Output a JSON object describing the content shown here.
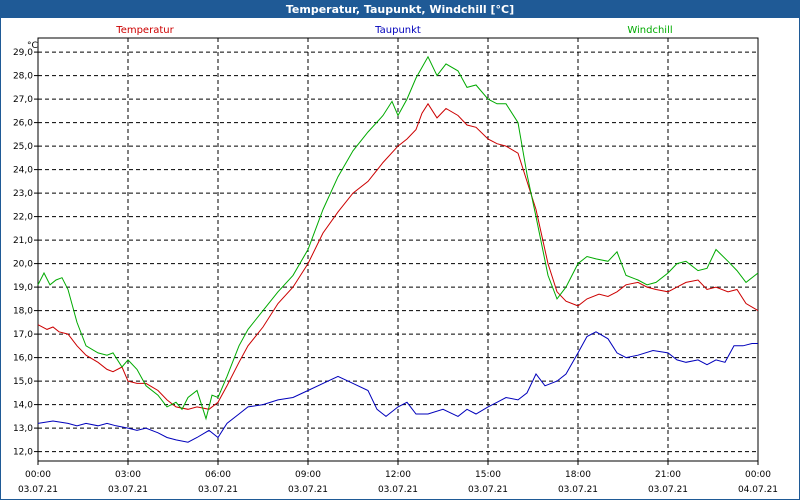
{
  "window": {
    "title": "Temperatur, Taupunkt, Windchill [°C]"
  },
  "chart_data": {
    "type": "line",
    "title": "Temperatur, Taupunkt, Windchill [°C]",
    "ylabel": "°C",
    "xlabel": "",
    "ylim": [
      11.6,
      29.6
    ],
    "xlim": [
      0,
      24
    ],
    "grid": true,
    "yticks": [
      "12,0",
      "13,0",
      "14,0",
      "15,0",
      "16,0",
      "17,0",
      "18,0",
      "19,0",
      "20,0",
      "21,0",
      "22,0",
      "23,0",
      "24,0",
      "25,0",
      "26,0",
      "27,0",
      "28,0",
      "29,0"
    ],
    "ytick_values": [
      12,
      13,
      14,
      15,
      16,
      17,
      18,
      19,
      20,
      21,
      22,
      23,
      24,
      25,
      26,
      27,
      28,
      29
    ],
    "xticks": [
      {
        "x": 0,
        "time": "00:00",
        "date": "03.07.21"
      },
      {
        "x": 3,
        "time": "03:00",
        "date": "03.07.21"
      },
      {
        "x": 6,
        "time": "06:00",
        "date": "03.07.21"
      },
      {
        "x": 9,
        "time": "09:00",
        "date": "03.07.21"
      },
      {
        "x": 12,
        "time": "12:00",
        "date": "03.07.21"
      },
      {
        "x": 15,
        "time": "15:00",
        "date": "03.07.21"
      },
      {
        "x": 18,
        "time": "18:00",
        "date": "03.07.21"
      },
      {
        "x": 21,
        "time": "21:00",
        "date": "03.07.21"
      },
      {
        "x": 24,
        "time": "00:00",
        "date": "04.07.21"
      }
    ],
    "series": [
      {
        "name": "Temperatur",
        "color": "#cc0000",
        "points": [
          [
            0,
            17.4
          ],
          [
            0.3,
            17.2
          ],
          [
            0.5,
            17.3
          ],
          [
            0.7,
            17.1
          ],
          [
            1.0,
            17.0
          ],
          [
            1.3,
            16.5
          ],
          [
            1.6,
            16.1
          ],
          [
            2.0,
            15.8
          ],
          [
            2.3,
            15.5
          ],
          [
            2.5,
            15.4
          ],
          [
            2.8,
            15.6
          ],
          [
            3.0,
            15.0
          ],
          [
            3.3,
            14.9
          ],
          [
            3.6,
            14.9
          ],
          [
            4.0,
            14.6
          ],
          [
            4.3,
            14.2
          ],
          [
            4.6,
            13.9
          ],
          [
            5.0,
            13.8
          ],
          [
            5.3,
            13.9
          ],
          [
            5.7,
            13.8
          ],
          [
            6.0,
            14.1
          ],
          [
            6.3,
            14.8
          ],
          [
            6.7,
            15.8
          ],
          [
            7.0,
            16.5
          ],
          [
            7.5,
            17.3
          ],
          [
            8.0,
            18.3
          ],
          [
            8.5,
            19.0
          ],
          [
            9.0,
            20.0
          ],
          [
            9.5,
            21.3
          ],
          [
            10.0,
            22.2
          ],
          [
            10.5,
            23.0
          ],
          [
            11.0,
            23.5
          ],
          [
            11.5,
            24.3
          ],
          [
            12.0,
            25.0
          ],
          [
            12.3,
            25.3
          ],
          [
            12.6,
            25.7
          ],
          [
            12.8,
            26.4
          ],
          [
            13.0,
            26.8
          ],
          [
            13.3,
            26.2
          ],
          [
            13.6,
            26.6
          ],
          [
            14.0,
            26.3
          ],
          [
            14.3,
            25.9
          ],
          [
            14.6,
            25.8
          ],
          [
            15.0,
            25.3
          ],
          [
            15.3,
            25.1
          ],
          [
            15.6,
            25.0
          ],
          [
            16.0,
            24.7
          ],
          [
            16.3,
            23.5
          ],
          [
            16.6,
            22.3
          ],
          [
            17.0,
            20.0
          ],
          [
            17.3,
            18.8
          ],
          [
            17.6,
            18.4
          ],
          [
            18.0,
            18.2
          ],
          [
            18.3,
            18.5
          ],
          [
            18.7,
            18.7
          ],
          [
            19.0,
            18.6
          ],
          [
            19.3,
            18.8
          ],
          [
            19.6,
            19.1
          ],
          [
            20.0,
            19.2
          ],
          [
            20.3,
            19.0
          ],
          [
            20.6,
            18.9
          ],
          [
            21.0,
            18.8
          ],
          [
            21.3,
            19.0
          ],
          [
            21.6,
            19.2
          ],
          [
            22.0,
            19.3
          ],
          [
            22.3,
            18.9
          ],
          [
            22.6,
            19.0
          ],
          [
            23.0,
            18.8
          ],
          [
            23.3,
            18.9
          ],
          [
            23.6,
            18.3
          ],
          [
            24.0,
            18.0
          ]
        ]
      },
      {
        "name": "Taupunkt",
        "color": "#0000bb",
        "points": [
          [
            0,
            13.2
          ],
          [
            0.5,
            13.3
          ],
          [
            1.0,
            13.2
          ],
          [
            1.3,
            13.1
          ],
          [
            1.6,
            13.2
          ],
          [
            2.0,
            13.1
          ],
          [
            2.3,
            13.2
          ],
          [
            2.6,
            13.1
          ],
          [
            3.0,
            13.0
          ],
          [
            3.3,
            12.9
          ],
          [
            3.6,
            13.0
          ],
          [
            4.0,
            12.8
          ],
          [
            4.3,
            12.6
          ],
          [
            4.6,
            12.5
          ],
          [
            5.0,
            12.4
          ],
          [
            5.3,
            12.6
          ],
          [
            5.7,
            12.9
          ],
          [
            6.0,
            12.6
          ],
          [
            6.3,
            13.2
          ],
          [
            6.7,
            13.6
          ],
          [
            7.0,
            13.9
          ],
          [
            7.5,
            14.0
          ],
          [
            8.0,
            14.2
          ],
          [
            8.5,
            14.3
          ],
          [
            9.0,
            14.6
          ],
          [
            9.5,
            14.9
          ],
          [
            10.0,
            15.2
          ],
          [
            10.5,
            14.9
          ],
          [
            11.0,
            14.6
          ],
          [
            11.3,
            13.8
          ],
          [
            11.6,
            13.5
          ],
          [
            12.0,
            13.9
          ],
          [
            12.3,
            14.1
          ],
          [
            12.6,
            13.6
          ],
          [
            13.0,
            13.6
          ],
          [
            13.5,
            13.8
          ],
          [
            14.0,
            13.5
          ],
          [
            14.3,
            13.8
          ],
          [
            14.6,
            13.6
          ],
          [
            15.0,
            13.9
          ],
          [
            15.3,
            14.1
          ],
          [
            15.6,
            14.3
          ],
          [
            16.0,
            14.2
          ],
          [
            16.3,
            14.5
          ],
          [
            16.6,
            15.3
          ],
          [
            16.9,
            14.8
          ],
          [
            17.3,
            15.0
          ],
          [
            17.6,
            15.3
          ],
          [
            18.0,
            16.2
          ],
          [
            18.3,
            16.9
          ],
          [
            18.6,
            17.1
          ],
          [
            19.0,
            16.8
          ],
          [
            19.3,
            16.2
          ],
          [
            19.6,
            16.0
          ],
          [
            20.0,
            16.1
          ],
          [
            20.5,
            16.3
          ],
          [
            21.0,
            16.2
          ],
          [
            21.3,
            15.9
          ],
          [
            21.6,
            15.8
          ],
          [
            22.0,
            15.9
          ],
          [
            22.3,
            15.7
          ],
          [
            22.6,
            15.9
          ],
          [
            22.9,
            15.8
          ],
          [
            23.2,
            16.5
          ],
          [
            23.5,
            16.5
          ],
          [
            23.8,
            16.6
          ],
          [
            24.0,
            16.6
          ]
        ]
      },
      {
        "name": "Windchill",
        "color": "#00aa00",
        "points": [
          [
            0,
            19.1
          ],
          [
            0.2,
            19.6
          ],
          [
            0.4,
            19.1
          ],
          [
            0.6,
            19.3
          ],
          [
            0.8,
            19.4
          ],
          [
            1.0,
            18.9
          ],
          [
            1.3,
            17.5
          ],
          [
            1.6,
            16.5
          ],
          [
            2.0,
            16.2
          ],
          [
            2.3,
            16.1
          ],
          [
            2.5,
            16.2
          ],
          [
            2.8,
            15.6
          ],
          [
            3.0,
            15.9
          ],
          [
            3.3,
            15.5
          ],
          [
            3.6,
            14.8
          ],
          [
            4.0,
            14.4
          ],
          [
            4.3,
            13.9
          ],
          [
            4.6,
            14.1
          ],
          [
            4.8,
            13.8
          ],
          [
            5.0,
            14.3
          ],
          [
            5.3,
            14.6
          ],
          [
            5.6,
            13.4
          ],
          [
            5.8,
            14.4
          ],
          [
            6.0,
            14.3
          ],
          [
            6.3,
            15.2
          ],
          [
            6.7,
            16.5
          ],
          [
            7.0,
            17.2
          ],
          [
            7.5,
            18.0
          ],
          [
            8.0,
            18.8
          ],
          [
            8.5,
            19.5
          ],
          [
            9.0,
            20.6
          ],
          [
            9.5,
            22.3
          ],
          [
            10.0,
            23.7
          ],
          [
            10.5,
            24.8
          ],
          [
            11.0,
            25.6
          ],
          [
            11.5,
            26.3
          ],
          [
            11.8,
            26.9
          ],
          [
            12.0,
            26.3
          ],
          [
            12.3,
            27.0
          ],
          [
            12.6,
            27.9
          ],
          [
            13.0,
            28.8
          ],
          [
            13.3,
            28.0
          ],
          [
            13.6,
            28.5
          ],
          [
            14.0,
            28.2
          ],
          [
            14.3,
            27.5
          ],
          [
            14.6,
            27.6
          ],
          [
            15.0,
            27.0
          ],
          [
            15.3,
            26.8
          ],
          [
            15.6,
            26.8
          ],
          [
            16.0,
            26.0
          ],
          [
            16.3,
            23.8
          ],
          [
            16.6,
            22.0
          ],
          [
            17.0,
            19.5
          ],
          [
            17.3,
            18.5
          ],
          [
            17.6,
            19.0
          ],
          [
            18.0,
            20.0
          ],
          [
            18.3,
            20.3
          ],
          [
            18.6,
            20.2
          ],
          [
            19.0,
            20.1
          ],
          [
            19.3,
            20.5
          ],
          [
            19.6,
            19.5
          ],
          [
            20.0,
            19.3
          ],
          [
            20.3,
            19.1
          ],
          [
            20.6,
            19.2
          ],
          [
            21.0,
            19.6
          ],
          [
            21.3,
            20.0
          ],
          [
            21.6,
            20.1
          ],
          [
            22.0,
            19.7
          ],
          [
            22.3,
            19.8
          ],
          [
            22.6,
            20.6
          ],
          [
            23.0,
            20.1
          ],
          [
            23.3,
            19.7
          ],
          [
            23.6,
            19.2
          ],
          [
            24.0,
            19.6
          ]
        ]
      }
    ]
  }
}
